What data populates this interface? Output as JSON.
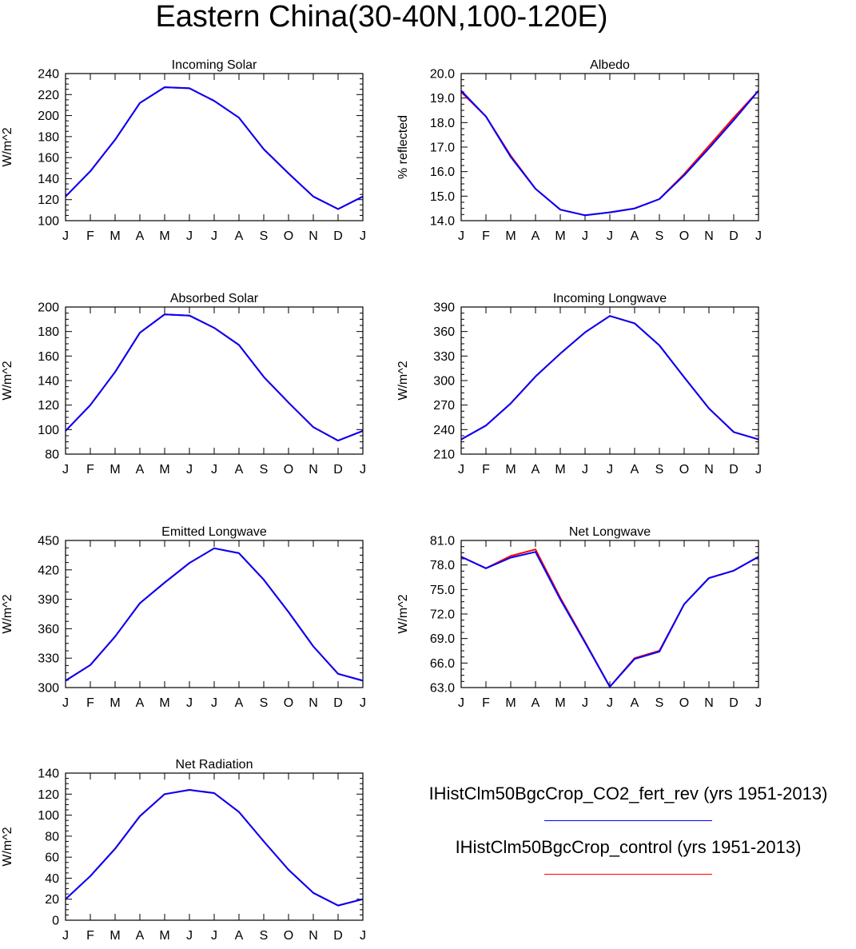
{
  "title": "Eastern China(30-40N,100-120E)",
  "months": [
    "J",
    "F",
    "M",
    "A",
    "M",
    "J",
    "J",
    "A",
    "S",
    "O",
    "N",
    "D",
    "J"
  ],
  "legend": [
    {
      "label": "IHistClm50BgcCrop_CO2_fert_rev (yrs 1951-2013)",
      "color": "#0000ff"
    },
    {
      "label": "IHistClm50BgcCrop_control (yrs 1951-2013)",
      "color": "#ff0000"
    }
  ],
  "chart_data": [
    {
      "type": "line",
      "title": "Incoming Solar",
      "ylabel": "W/m^2",
      "ylim": [
        100,
        240
      ],
      "yticks": [
        "100",
        "120",
        "140",
        "160",
        "180",
        "200",
        "220",
        "240"
      ],
      "series": [
        {
          "name": "IHistClm50BgcCrop_CO2_fert_rev (yrs 1951-2013)",
          "color": "#0000ff",
          "values": [
            123,
            147,
            177,
            212,
            227,
            226,
            214,
            198,
            168,
            145,
            123,
            111,
            123
          ]
        },
        {
          "name": "IHistClm50BgcCrop_control (yrs 1951-2013)",
          "color": "#ff0000",
          "values": [
            123,
            147,
            177,
            212,
            227,
            226,
            214,
            198,
            168,
            145,
            123,
            111,
            123
          ]
        }
      ]
    },
    {
      "type": "line",
      "title": "Albedo",
      "ylabel": "% reflected",
      "ylim": [
        14.0,
        20.0
      ],
      "yticks": [
        "14.0",
        "15.0",
        "16.0",
        "17.0",
        "18.0",
        "19.0",
        "20.0"
      ],
      "series": [
        {
          "name": "IHistClm50BgcCrop_CO2_fert_rev (yrs 1951-2013)",
          "color": "#0000ff",
          "values": [
            19.3,
            18.25,
            16.6,
            15.3,
            14.45,
            14.22,
            14.34,
            14.5,
            14.88,
            15.85,
            16.95,
            18.1,
            19.3
          ]
        },
        {
          "name": "IHistClm50BgcCrop_control (yrs 1951-2013)",
          "color": "#ff0000",
          "values": [
            19.25,
            18.25,
            16.65,
            15.3,
            14.45,
            14.22,
            14.34,
            14.5,
            14.88,
            15.9,
            17.05,
            18.2,
            19.3
          ]
        }
      ]
    },
    {
      "type": "line",
      "title": "Absorbed Solar",
      "ylabel": "W/m^2",
      "ylim": [
        80,
        200
      ],
      "yticks": [
        "80",
        "100",
        "120",
        "140",
        "160",
        "180",
        "200"
      ],
      "series": [
        {
          "name": "IHistClm50BgcCrop_CO2_fert_rev (yrs 1951-2013)",
          "color": "#0000ff",
          "values": [
            99,
            120,
            147,
            179,
            194,
            193,
            183,
            169,
            143,
            122,
            102,
            91,
            99
          ]
        },
        {
          "name": "IHistClm50BgcCrop_control (yrs 1951-2013)",
          "color": "#ff0000",
          "values": [
            99,
            120,
            147,
            179,
            194,
            193,
            183,
            169,
            143,
            122,
            102,
            91,
            99
          ]
        }
      ]
    },
    {
      "type": "line",
      "title": "Incoming Longwave",
      "ylabel": "W/m^2",
      "ylim": [
        210,
        390
      ],
      "yticks": [
        "210",
        "240",
        "270",
        "300",
        "330",
        "360",
        "390"
      ],
      "series": [
        {
          "name": "IHistClm50BgcCrop_CO2_fert_rev (yrs 1951-2013)",
          "color": "#0000ff",
          "values": [
            228,
            245,
            272,
            305,
            333,
            359,
            379,
            370,
            343,
            304,
            266,
            237,
            228
          ]
        },
        {
          "name": "IHistClm50BgcCrop_control (yrs 1951-2013)",
          "color": "#ff0000",
          "values": [
            228,
            245,
            272,
            305,
            333,
            359,
            379,
            370,
            343,
            304,
            266,
            237,
            228
          ]
        }
      ]
    },
    {
      "type": "line",
      "title": "Emitted Longwave",
      "ylabel": "W/m^2",
      "ylim": [
        300,
        450
      ],
      "yticks": [
        "300",
        "330",
        "360",
        "390",
        "420",
        "450"
      ],
      "series": [
        {
          "name": "IHistClm50BgcCrop_CO2_fert_rev (yrs 1951-2013)",
          "color": "#0000ff",
          "values": [
            307,
            323,
            352,
            386,
            407,
            427,
            442,
            437,
            410,
            377,
            342,
            314,
            307
          ]
        },
        {
          "name": "IHistClm50BgcCrop_control (yrs 1951-2013)",
          "color": "#ff0000",
          "values": [
            307,
            323,
            352,
            386,
            407,
            427,
            442,
            437,
            410,
            377,
            342,
            314,
            307
          ]
        }
      ]
    },
    {
      "type": "line",
      "title": "Net Longwave",
      "ylabel": "W/m^2",
      "ylim": [
        63.0,
        81.0
      ],
      "yticks": [
        "63.0",
        "66.0",
        "69.0",
        "72.0",
        "75.0",
        "78.0",
        "81.0"
      ],
      "series": [
        {
          "name": "IHistClm50BgcCrop_CO2_fert_rev (yrs 1951-2013)",
          "color": "#0000ff",
          "values": [
            79.0,
            77.6,
            78.9,
            79.6,
            73.8,
            68.5,
            63.1,
            66.5,
            67.4,
            73.2,
            76.4,
            77.3,
            79.0
          ]
        },
        {
          "name": "IHistClm50BgcCrop_control (yrs 1951-2013)",
          "color": "#ff0000",
          "values": [
            79.0,
            77.6,
            79.1,
            79.9,
            74.0,
            68.6,
            63.1,
            66.6,
            67.5,
            73.2,
            76.4,
            77.3,
            79.0
          ]
        }
      ]
    },
    {
      "type": "line",
      "title": "Net Radiation",
      "ylabel": "W/m^2",
      "ylim": [
        0,
        140
      ],
      "yticks": [
        "0",
        "20",
        "40",
        "60",
        "80",
        "100",
        "120",
        "140"
      ],
      "series": [
        {
          "name": "IHistClm50BgcCrop_CO2_fert_rev (yrs 1951-2013)",
          "color": "#0000ff",
          "values": [
            20,
            42,
            68,
            99,
            120,
            124,
            121,
            103,
            75,
            48,
            26,
            14,
            20
          ]
        },
        {
          "name": "IHistClm50BgcCrop_control (yrs 1951-2013)",
          "color": "#ff0000",
          "values": [
            20,
            42,
            68,
            99,
            120,
            124,
            121,
            103,
            75,
            48,
            26,
            14,
            20
          ]
        }
      ]
    }
  ]
}
